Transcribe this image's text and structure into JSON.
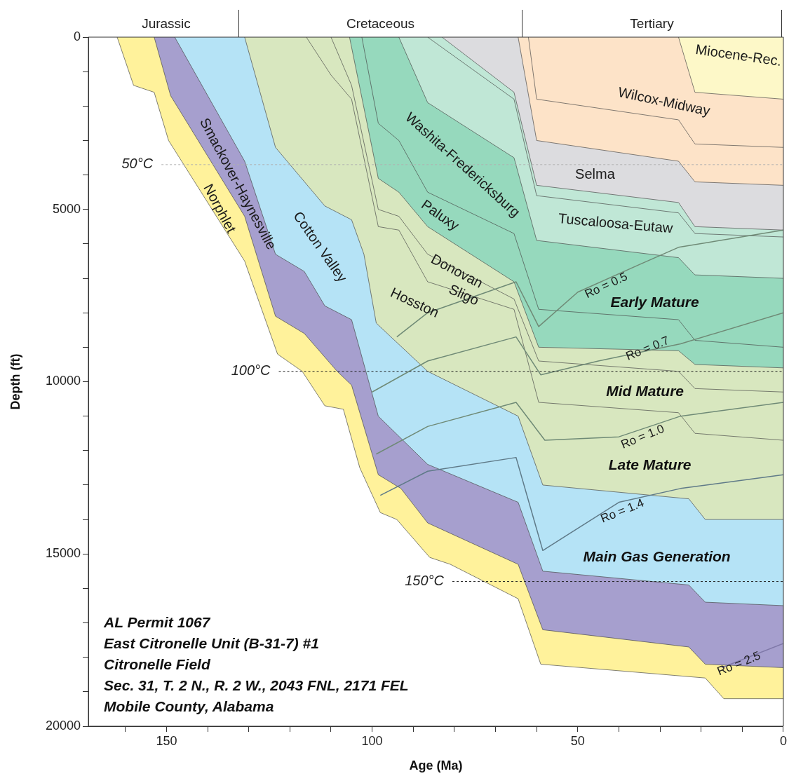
{
  "chart_data": {
    "type": "area",
    "xlabel": "Age (Ma)",
    "ylabel": "Depth (ft)",
    "xlim": [
      169,
      0
    ],
    "xticks": [
      {
        "value": 160,
        "label": null
      },
      150,
      {
        "value": 140,
        "label": null
      },
      {
        "value": 130,
        "label": null
      },
      {
        "value": 120,
        "label": null
      },
      {
        "value": 110,
        "label": null
      },
      100,
      {
        "value": 90,
        "label": null
      },
      {
        "value": 80,
        "label": null
      },
      {
        "value": 70,
        "label": null
      },
      {
        "value": 60,
        "label": null
      },
      50,
      {
        "value": 40,
        "label": null
      },
      {
        "value": 30,
        "label": null
      },
      {
        "value": 20,
        "label": null
      },
      {
        "value": 10,
        "label": null
      },
      0
    ],
    "ylim": [
      20000,
      0
    ],
    "yticks": [
      0,
      {
        "value": 1000,
        "label": null
      },
      {
        "value": 2000,
        "label": null
      },
      {
        "value": 3000,
        "label": null
      },
      {
        "value": 4000,
        "label": null
      },
      5000,
      {
        "value": 6000,
        "label": null
      },
      {
        "value": 7000,
        "label": null
      },
      {
        "value": 8000,
        "label": null
      },
      {
        "value": 9000,
        "label": null
      },
      10000,
      {
        "value": 11000,
        "label": null
      },
      {
        "value": 12000,
        "label": null
      },
      {
        "value": 13000,
        "label": null
      },
      {
        "value": 14000,
        "label": null
      },
      15000,
      {
        "value": 16000,
        "label": null
      },
      {
        "value": 17000,
        "label": null
      },
      {
        "value": 18000,
        "label": null
      },
      {
        "value": 19000,
        "label": null
      },
      20000
    ],
    "ref_lines": [
      {
        "axis": "y",
        "value": 3700,
        "label": "50°C",
        "color": "#b0b0b0"
      },
      {
        "axis": "y",
        "value": 9700,
        "label": "100°C",
        "color": "#222222"
      },
      {
        "axis": "y",
        "value": 15800,
        "label": "150°C",
        "color": "#222222"
      }
    ],
    "series": [
      {
        "name": "Miocene-Rec.",
        "color": "#fdf8c8",
        "x": [
          25.5,
          21.5,
          0
        ],
        "values": [
          0,
          1600,
          1800
        ]
      },
      {
        "color": "#fde3c8",
        "x": [
          62,
          60,
          25.5,
          21.5,
          0
        ],
        "values": [
          0,
          1800,
          2400,
          3100,
          3200
        ]
      },
      {
        "name": "Wilcox-Midway",
        "color": "#fde3c8",
        "x": [
          64.5,
          60,
          25.5,
          21.5,
          0
        ],
        "values": [
          0,
          3000,
          3600,
          4200,
          4300
        ]
      },
      {
        "name": "Selma",
        "color": "#dcdcdf",
        "x": [
          83,
          65.5,
          60,
          25.5,
          21.5,
          0
        ],
        "values": [
          0,
          1600,
          4300,
          4800,
          5500,
          5600
        ]
      },
      {
        "color": "#c0e7d6",
        "x": [
          86.5,
          65.5,
          60,
          25.5,
          21.5,
          0
        ],
        "values": [
          0,
          1800,
          4600,
          5100,
          5700,
          5800
        ]
      },
      {
        "name": "Tuscaloosa-Eutaw",
        "color": "#c0e7d6",
        "x": [
          93.5,
          86.5,
          65.5,
          60,
          25.5,
          21.5,
          0
        ],
        "values": [
          0,
          1900,
          3500,
          5900,
          6400,
          6900,
          7000
        ]
      },
      {
        "name": "Washita-Fredericksburg",
        "color": "#96d9bd",
        "x": [
          102.5,
          98.5,
          93.5,
          86.5,
          65.5,
          59.5,
          25.5,
          21.5,
          0
        ],
        "values": [
          0,
          2500,
          3000,
          4500,
          5700,
          7900,
          8200,
          8800,
          9000
        ]
      },
      {
        "name": "Paluxy",
        "color": "#96d9bd",
        "x": [
          105.5,
          98.5,
          93.5,
          86.5,
          65.5,
          59.5,
          25.5,
          21.5,
          0
        ],
        "values": [
          0,
          4100,
          4500,
          5500,
          7100,
          9000,
          9100,
          9500,
          9600
        ]
      },
      {
        "name": "Donovan",
        "color": "#d8e7bf",
        "x": [
          110,
          105,
          98.5,
          93.5,
          86.5,
          65.5,
          59.5,
          25.5,
          21.5,
          0
        ],
        "values": [
          0,
          1400,
          5000,
          5200,
          6300,
          7600,
          9400,
          9700,
          10200,
          10300
        ]
      },
      {
        "name": "Sligo",
        "color": "#d8e7bf",
        "x": [
          116,
          110,
          105,
          98.5,
          93.5,
          86.5,
          65.5,
          59.5,
          25.5,
          21.5,
          0
        ],
        "values": [
          0,
          1100,
          1800,
          5500,
          5600,
          7100,
          7900,
          10600,
          10900,
          11500,
          11700
        ]
      },
      {
        "name": "Hosston",
        "color": "#d8e7bf",
        "x": [
          131,
          123.5,
          111.5,
          105,
          102,
          99,
          86.5,
          64.5,
          58.5,
          23,
          19,
          0
        ],
        "values": [
          0,
          3200,
          4900,
          5300,
          6300,
          8300,
          9700,
          11000,
          13000,
          13400,
          14000,
          14000
        ]
      },
      {
        "name": "Cotton Valley",
        "color": "#b5e3f6",
        "x": [
          148,
          131,
          123.5,
          116.5,
          111.5,
          105,
          98.5,
          86.5,
          64.5,
          58.5,
          23,
          19,
          0
        ],
        "values": [
          0,
          3600,
          6300,
          6800,
          7800,
          8200,
          11000,
          12400,
          13500,
          15500,
          15900,
          16400,
          16500
        ]
      },
      {
        "name": "Smackover-Haynesville",
        "color": "#a69fce",
        "x": [
          153,
          149,
          131,
          123.5,
          116.5,
          108.5,
          105,
          98.5,
          93,
          86.5,
          64.5,
          58.5,
          23,
          19,
          0
        ],
        "values": [
          0,
          1700,
          5200,
          8100,
          8600,
          9700,
          10100,
          12700,
          13100,
          14100,
          15300,
          17200,
          17700,
          18200,
          18300
        ]
      },
      {
        "name": "Norphlet",
        "color": "#fff29b",
        "x": [
          162,
          158,
          153,
          149.5,
          131,
          123,
          117,
          111.5,
          107,
          103,
          98,
          94,
          86,
          81,
          64.5,
          59,
          19,
          14.5,
          0
        ],
        "values": [
          0,
          1400,
          1600,
          3000,
          6500,
          9200,
          9700,
          10700,
          10800,
          12500,
          13800,
          14000,
          15100,
          15300,
          16300,
          18200,
          18600,
          19200,
          19200
        ]
      },
      {
        "name": "Ro = 0.5",
        "type": "line",
        "color": "#6f8a76",
        "x": [
          94,
          86.5,
          65,
          59.5,
          50,
          35,
          25.5,
          0
        ],
        "values": [
          8700,
          8000,
          7100,
          8400,
          7400,
          6600,
          6100,
          5600
        ]
      },
      {
        "name": "Ro = 0.7",
        "type": "line",
        "color": "#6f8a76",
        "x": [
          100,
          86.5,
          65,
          59,
          45,
          25,
          0
        ],
        "values": [
          10300,
          9400,
          8700,
          9800,
          9400,
          8900,
          8000
        ]
      },
      {
        "name": "Ro = 1.0",
        "type": "line",
        "color": "#6f8a76",
        "x": [
          99,
          86.5,
          65,
          58,
          40,
          25,
          0
        ],
        "values": [
          12100,
          11300,
          10600,
          11700,
          11600,
          11000,
          10600
        ]
      },
      {
        "name": "Ro = 1.4",
        "type": "line",
        "color": "#5f7a88",
        "x": [
          98,
          86.5,
          65,
          58.5,
          40,
          25,
          0
        ],
        "values": [
          13300,
          12600,
          12200,
          14900,
          13500,
          13100,
          12700
        ]
      },
      {
        "name": "Ro = 2.5",
        "type": "line",
        "color": "#7f78a8",
        "x": [
          15,
          0
        ],
        "values": [
          18300,
          17600
        ]
      }
    ],
    "annotations": [
      "Jurassic",
      "Cretaceous",
      "Tertiary",
      "Early Mature",
      "Mid Mature",
      "Late Mature",
      "Main Gas Generation",
      "AL Permit 1067",
      "East Citronelle Unit (B-31-7) #1",
      "Citronelle Field",
      "Sec. 31, T. 2 N., R. 2 W., 2043 FNL, 2171 FEL",
      "Mobile County, Alabama"
    ]
  }
}
